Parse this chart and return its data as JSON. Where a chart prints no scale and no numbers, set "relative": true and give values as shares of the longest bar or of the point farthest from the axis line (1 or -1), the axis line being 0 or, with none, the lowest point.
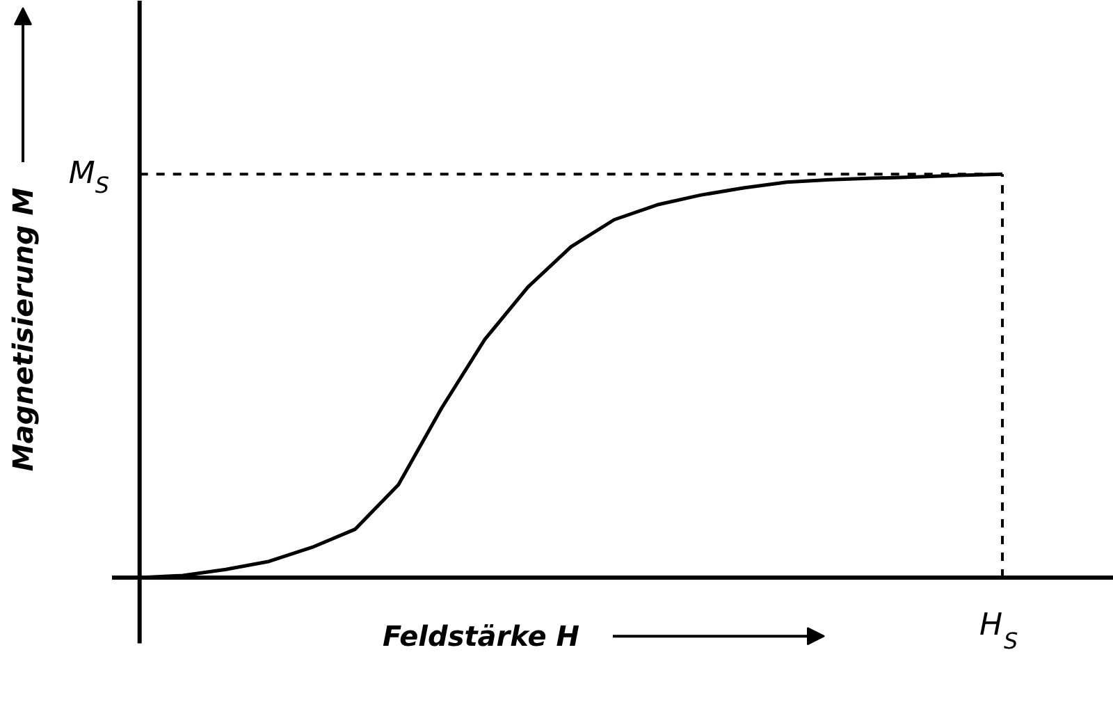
{
  "chart_data": {
    "type": "line",
    "relative": true,
    "xlabel": "Feldstärke H",
    "ylabel": "Magnetisierung M",
    "categories": [
      null,
      null,
      null,
      null,
      null,
      null,
      null,
      null,
      null,
      null,
      null,
      null,
      null,
      null,
      null,
      null,
      null,
      null,
      null,
      null,
      null
    ],
    "series": [
      {
        "color": "#000000",
        "values": [
          0,
          0.005,
          0.02,
          0.04,
          0.075,
          0.12,
          0.23,
          0.42,
          0.59,
          0.72,
          0.82,
          0.887,
          0.924,
          0.948,
          0.966,
          0.98,
          0.986,
          0.99,
          0.993,
          0.997,
          1.0
        ]
      }
    ],
    "annotations": [
      "H$_{S}$"
    ],
    "ref_lines": [
      {
        "axis": "y",
        "value": 1,
        "label": "M$_{S}$",
        "line_style": "dashed",
        "color": "#000000"
      }
    ],
    "grid": false,
    "marker": "none",
    "line_style": "solid"
  }
}
